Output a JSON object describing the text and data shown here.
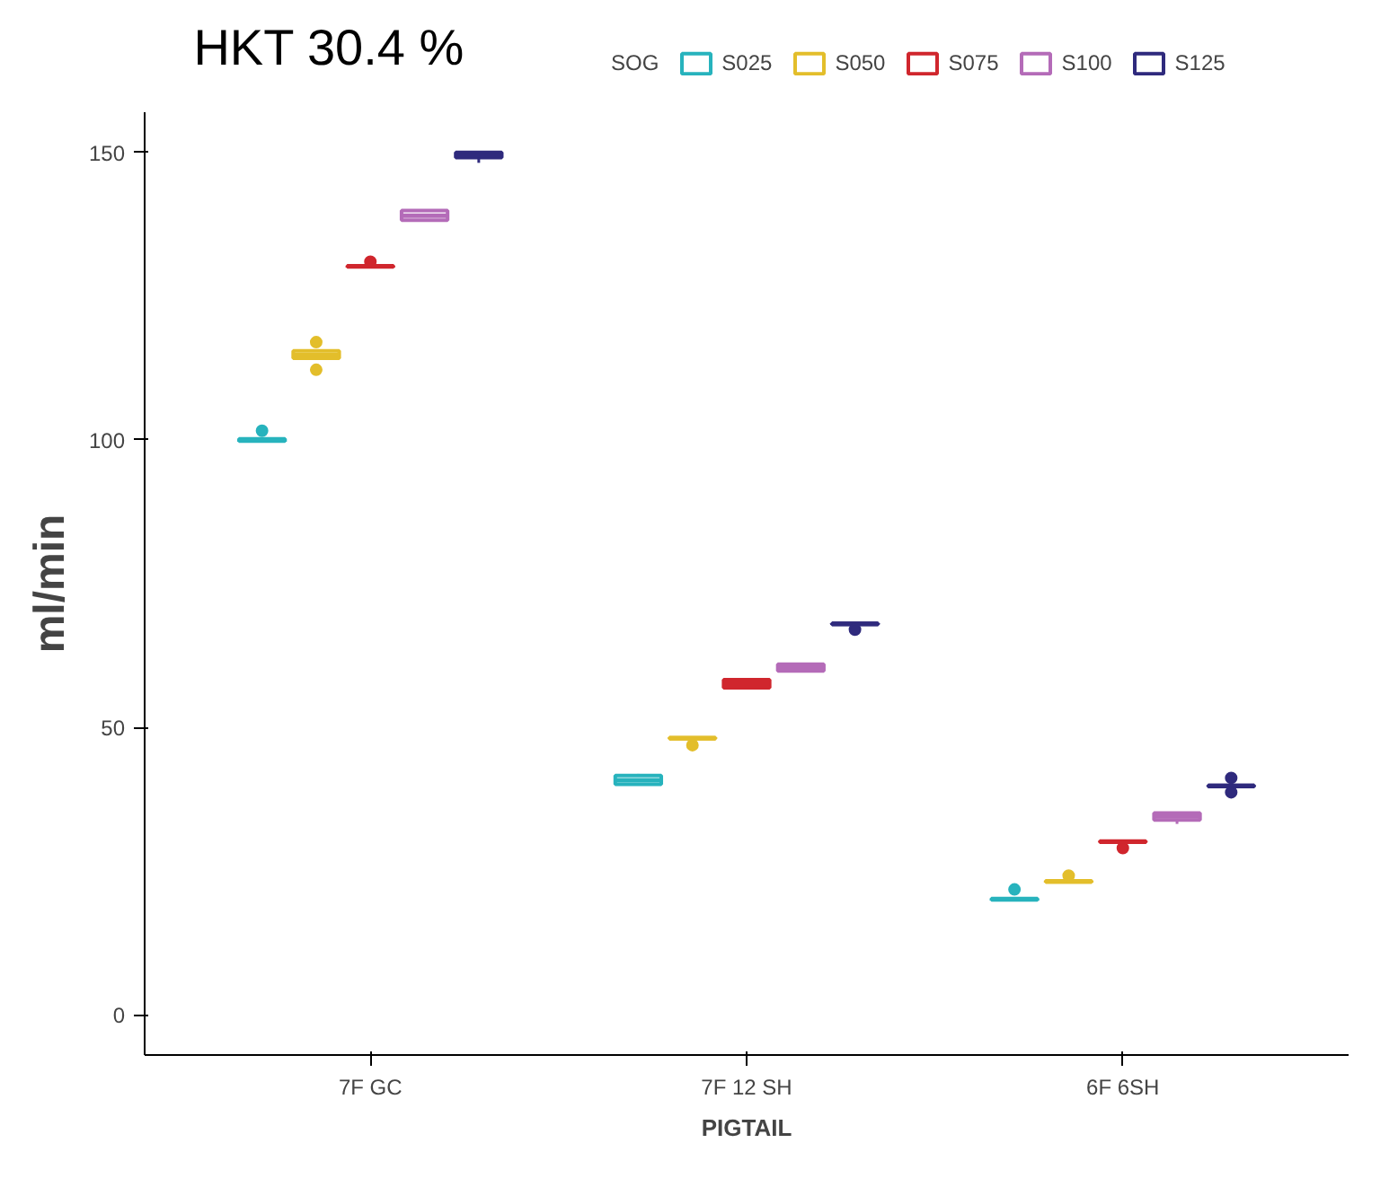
{
  "chart_data": {
    "type": "box",
    "title": "HKT 30.4 %",
    "xlabel": "PIGTAIL",
    "ylabel": "ml/min",
    "legend_title": "SOG",
    "categories": [
      "7F GC",
      "7F 12 SH",
      "6F 6SH"
    ],
    "ylim": [
      -7,
      157
    ],
    "yticks": [
      0,
      50,
      100,
      150
    ],
    "grid": false,
    "legend": "top",
    "series": [
      {
        "name": "S025",
        "color": "#27b3bd",
        "boxes": [
          {
            "low": 99.8,
            "q1": 99.8,
            "median": 100,
            "q3": 100.2,
            "high": 100.2,
            "outliers": [
              101.6
            ]
          },
          {
            "low": 40.1,
            "q1": 40.1,
            "median": 40.8,
            "q3": 41.6,
            "high": 41.9
          },
          {
            "low": 20,
            "q1": 20,
            "median": 20.1,
            "q3": 20.2,
            "high": 20.2,
            "outliers": [
              21.8
            ]
          }
        ]
      },
      {
        "name": "S050",
        "color": "#e3be2b",
        "boxes": [
          {
            "low": 114.2,
            "q1": 114.2,
            "median": 114.8,
            "q3": 115.5,
            "high": 115.5,
            "outliers": [
              117,
              112.2
            ]
          },
          {
            "low": 48,
            "q1": 48,
            "median": 48.1,
            "q3": 48.2,
            "high": 48.2,
            "outliers": [
              46.9
            ]
          },
          {
            "low": 23.1,
            "q1": 23.1,
            "median": 23.2,
            "q3": 23.3,
            "high": 23.3,
            "outliers": [
              24.2
            ]
          }
        ]
      },
      {
        "name": "S075",
        "color": "#d0262d",
        "boxes": [
          {
            "low": 130.1,
            "q1": 130.1,
            "median": 130.2,
            "q3": 130.3,
            "high": 130.3,
            "outliers": [
              131
            ]
          },
          {
            "low": 56.9,
            "q1": 56.9,
            "median": 57.6,
            "q3": 58.3,
            "high": 58.3
          },
          {
            "low": 30,
            "q1": 30,
            "median": 30.1,
            "q3": 30.2,
            "high": 30.2,
            "outliers": [
              29
            ]
          }
        ]
      },
      {
        "name": "S100",
        "color": "#b46bb8",
        "boxes": [
          {
            "low": 138.2,
            "q1": 138.2,
            "median": 139,
            "q3": 139.9,
            "high": 139.9
          },
          {
            "low": 59.8,
            "q1": 59.8,
            "median": 60.4,
            "q3": 61,
            "high": 61
          },
          {
            "low": 33.2,
            "q1": 33.9,
            "median": 34.5,
            "q3": 35.1,
            "high": 35.1
          }
        ]
      },
      {
        "name": "S125",
        "color": "#2f2a7d",
        "boxes": [
          {
            "low": 148.2,
            "q1": 149.1,
            "median": 149.5,
            "q3": 150,
            "high": 150
          },
          {
            "low": 67.9,
            "q1": 67.9,
            "median": 68,
            "q3": 68.1,
            "high": 68.1,
            "outliers": [
              67
            ]
          },
          {
            "low": 39.7,
            "q1": 39.7,
            "median": 39.8,
            "q3": 39.9,
            "high": 39.9,
            "outliers": [
              41.2,
              38.7
            ]
          }
        ]
      }
    ]
  }
}
